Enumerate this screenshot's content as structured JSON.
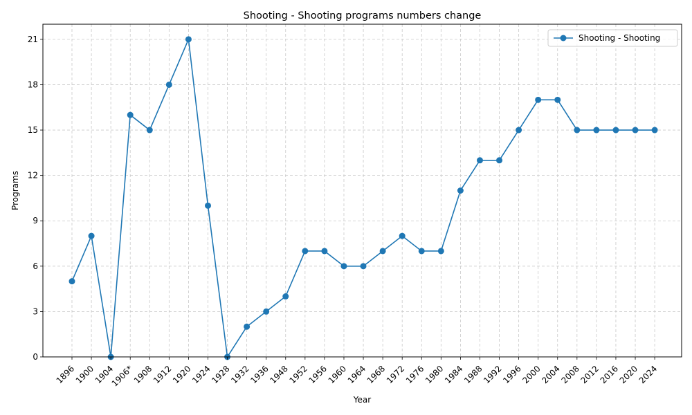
{
  "chart_data": {
    "type": "line",
    "title": "Shooting - Shooting programs numbers change",
    "xlabel": "Year",
    "ylabel": "Programs",
    "categories": [
      "1896",
      "1900",
      "1904",
      "1906*",
      "1908",
      "1912",
      "1920",
      "1924",
      "1928",
      "1932",
      "1936",
      "1948",
      "1952",
      "1956",
      "1960",
      "1964",
      "1968",
      "1972",
      "1976",
      "1980",
      "1984",
      "1988",
      "1992",
      "1996",
      "2000",
      "2004",
      "2008",
      "2012",
      "2016",
      "2020",
      "2024"
    ],
    "series": [
      {
        "name": "Shooting - Shooting",
        "color": "#1f77b4",
        "marker": "circle",
        "values": [
          5,
          8,
          0,
          16,
          15,
          18,
          21,
          10,
          0,
          2,
          3,
          4,
          7,
          7,
          6,
          6,
          7,
          8,
          7,
          7,
          11,
          13,
          13,
          15,
          17,
          17,
          15,
          15,
          15,
          15,
          15
        ]
      }
    ],
    "ylim": [
      0,
      22
    ],
    "yticks": [
      "0",
      "3",
      "6",
      "9",
      "12",
      "15",
      "18",
      "21"
    ],
    "grid": true,
    "legend_position": "top-right"
  }
}
